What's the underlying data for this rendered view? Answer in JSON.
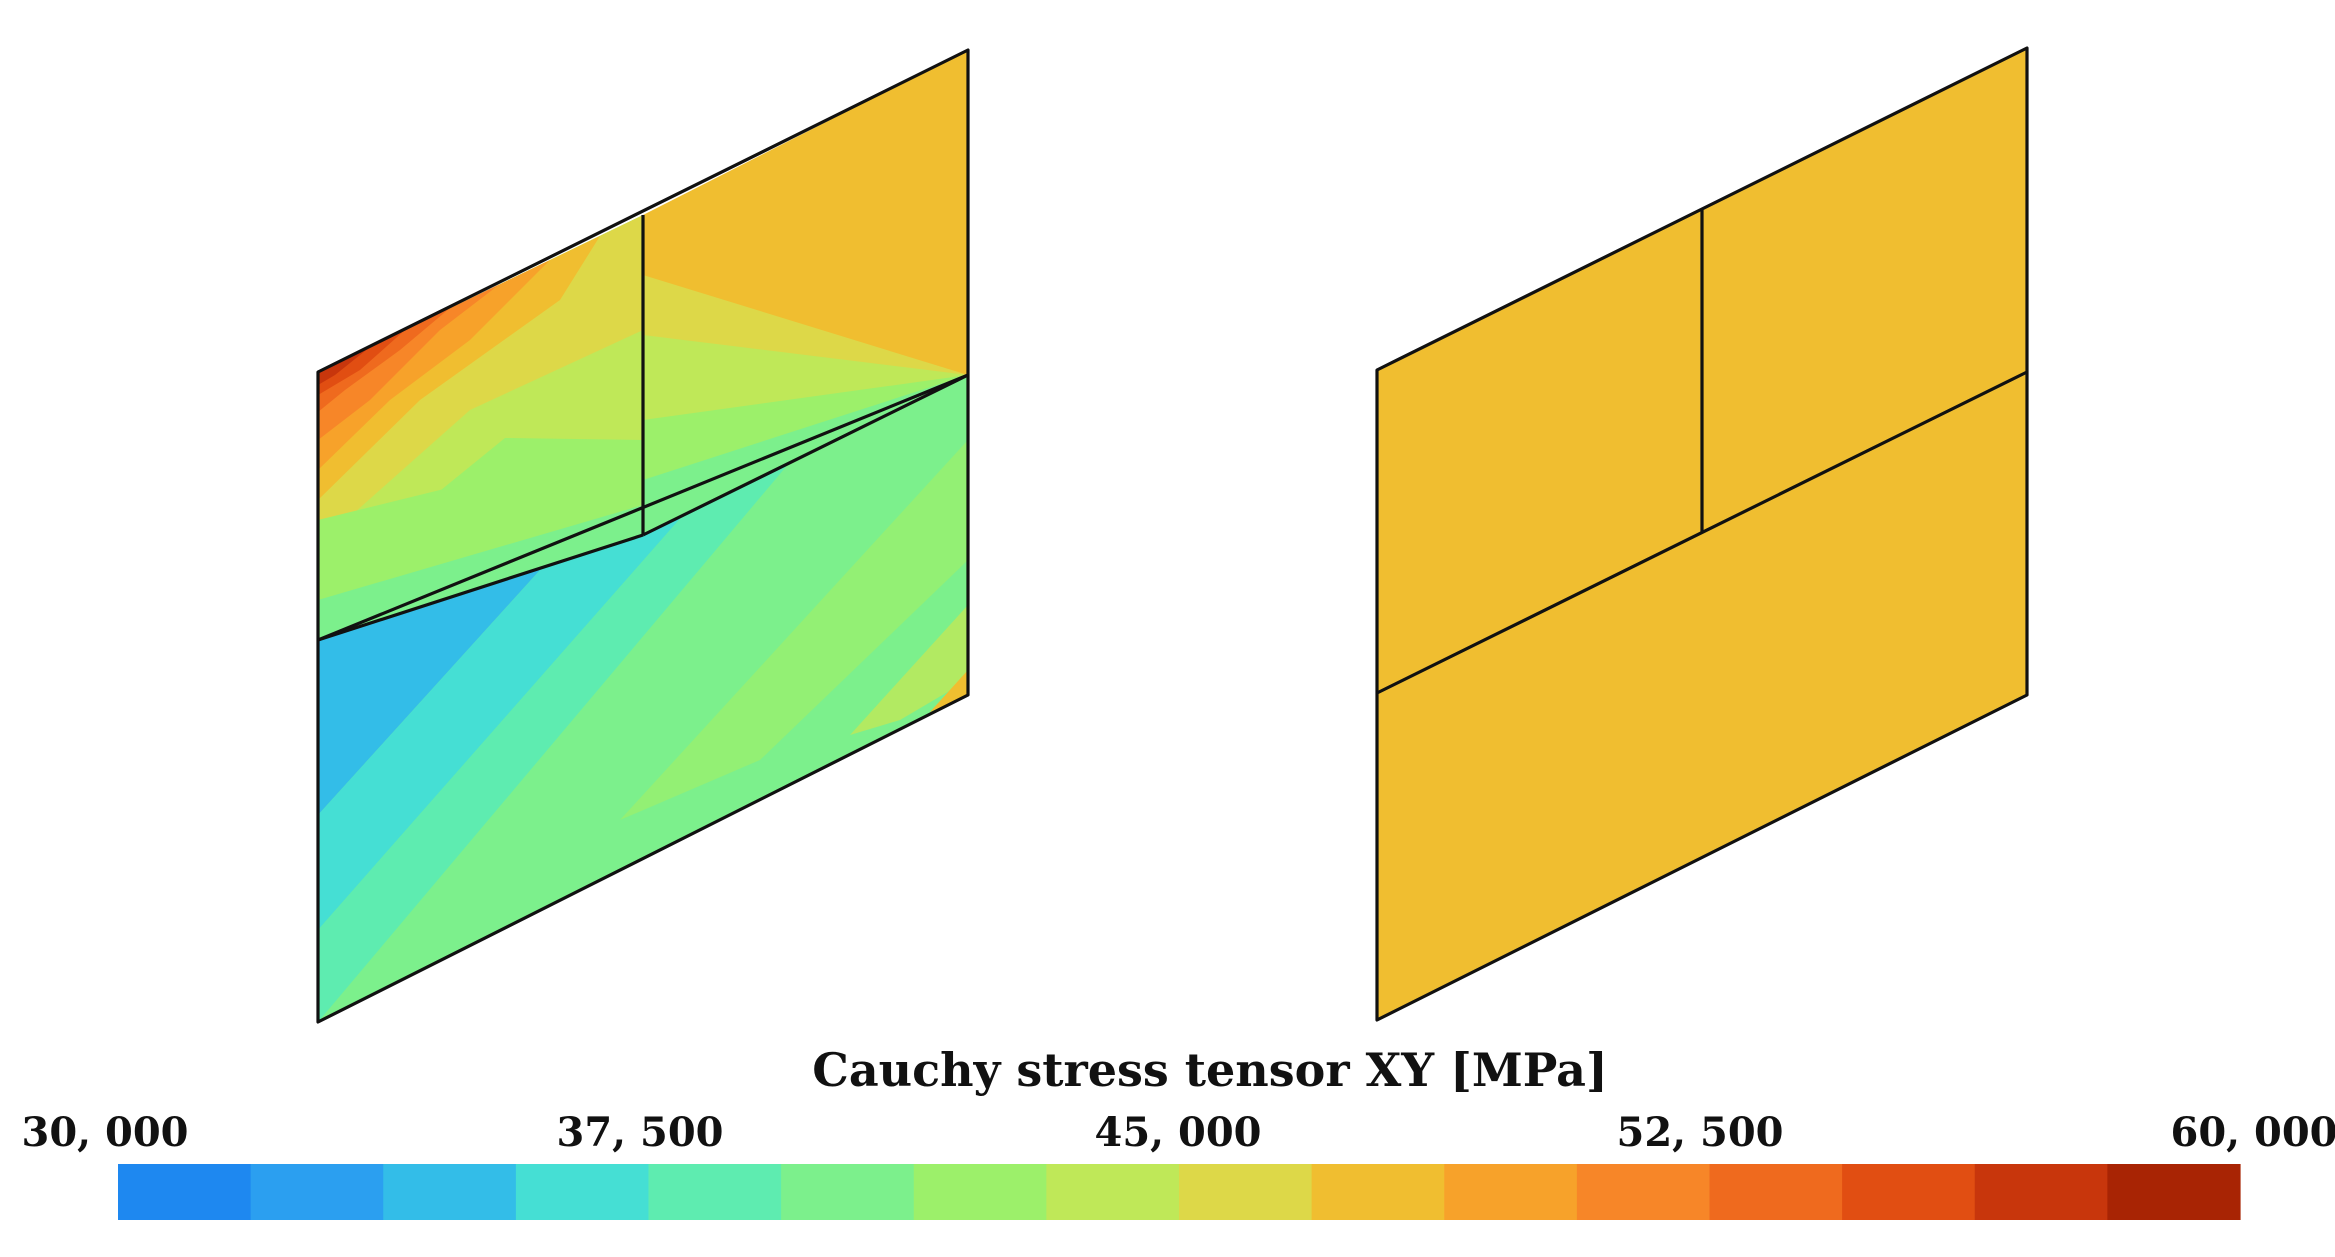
{
  "colorbar": {
    "title": "Cauchy stress tensor XY [MPa]",
    "ticks": [
      "30, 000",
      "37, 500",
      "45, 000",
      "52, 500",
      "60, 000"
    ],
    "range": [
      30000,
      60000
    ],
    "colors": [
      "#1e88f0",
      "#2b9ff0",
      "#33bde8",
      "#45dfd4",
      "#5eecb0",
      "#7cf08c",
      "#9cf06a",
      "#bfe858",
      "#ddd848",
      "#f0be30",
      "#f7a22a",
      "#f78628",
      "#ef6a1e",
      "#e14e12",
      "#c8360c",
      "#a82404"
    ]
  },
  "panels": [
    {
      "name": "deformed-left",
      "uniform_color": null
    },
    {
      "name": "uniform-right",
      "uniform_color": "#f0be30"
    }
  ]
}
